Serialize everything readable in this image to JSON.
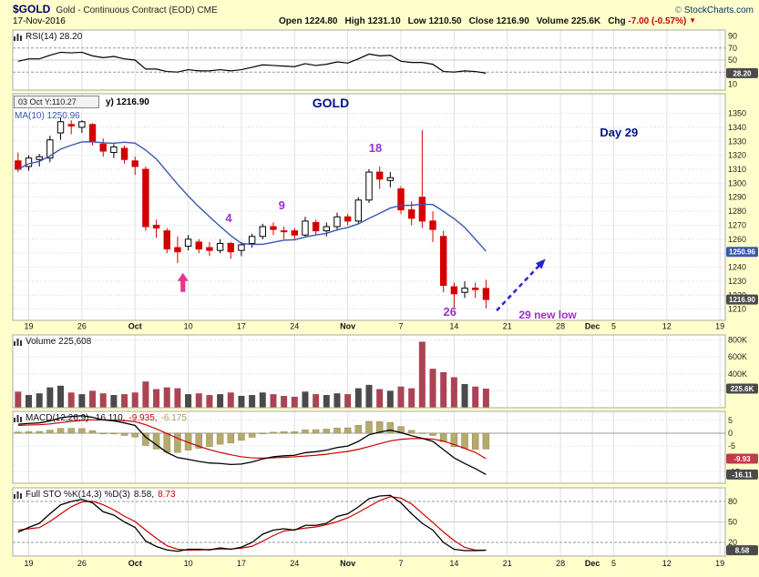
{
  "header": {
    "symbol": "$GOLD",
    "description": "Gold - Continuous Contract (EOD) CME",
    "copyright_prefix": "©",
    "copyright_name": "StockCharts.com",
    "date": "17-Nov-2016",
    "quote": {
      "open_label": "Open",
      "open": "1224.80",
      "high_label": "High",
      "high": "1231.10",
      "low_label": "Low",
      "low": "1210.50",
      "close_label": "Close",
      "close": "1216.90",
      "volume_label": "Volume",
      "volume": "225.6K",
      "chg_label": "Chg",
      "chg": "-7.00 (-0.57%)",
      "chg_dir": "▼"
    }
  },
  "legends": {
    "tooltip": "03 Oct Y:110.27",
    "price_partial": "y) 1216.90",
    "ma": "MA(10) 1250.96",
    "rsi": "RSI(14) 28.20",
    "volume": "Volume 225,608",
    "macd_name": "MACD(12,26,9)",
    "macd_v1": "-16.110,",
    "macd_v2": "-9.935,",
    "macd_v3": "-6.175",
    "sto_name": "Full STO %K(14,3) %D(3)",
    "sto_v1": "8.58,",
    "sto_v2": "8.73"
  },
  "chart_data": {
    "type": "candlestick",
    "title": "$GOLD Gold - Continuous Contract (EOD) CME",
    "slots": 67,
    "x_axis": {
      "grid_slots": [
        1,
        6,
        11,
        16,
        21,
        26,
        31,
        36,
        41,
        46,
        51,
        54,
        56,
        61,
        66
      ],
      "labels": [
        [
          1,
          "19",
          0
        ],
        [
          6,
          "26",
          0
        ],
        [
          11,
          "Oct",
          1
        ],
        [
          16,
          "10",
          0
        ],
        [
          21,
          "17",
          0
        ],
        [
          26,
          "24",
          0
        ],
        [
          31,
          "Nov",
          1
        ],
        [
          36,
          "7",
          0
        ],
        [
          41,
          "14",
          0
        ],
        [
          46,
          "21",
          0
        ],
        [
          51,
          "28",
          0
        ],
        [
          54,
          "Dec",
          1
        ],
        [
          56,
          "5",
          0
        ],
        [
          61,
          "12",
          0
        ],
        [
          66,
          "19",
          0
        ]
      ]
    },
    "panels": {
      "rsi": {
        "range": [
          0,
          100
        ],
        "ticks": [
          90,
          70,
          50,
          10
        ],
        "dashed": [
          70,
          30
        ],
        "solid": [
          50
        ],
        "values": [
          48,
          52,
          52,
          58,
          63,
          62,
          63,
          57,
          54,
          56,
          52,
          50,
          35,
          35,
          31,
          30,
          34,
          32,
          32,
          34,
          32,
          34,
          38,
          42,
          41,
          40,
          39,
          44,
          41,
          43,
          47,
          45,
          52,
          60,
          57,
          58,
          48,
          46,
          46,
          43,
          31,
          30,
          32,
          31,
          28.2
        ],
        "boxes": [
          {
            "text": "28.20",
            "v": 28.2,
            "bg": "#4a4a4a"
          }
        ]
      },
      "price": {
        "range": [
          1202,
          1364
        ],
        "ticks": [
          1350,
          1340,
          1330,
          1320,
          1310,
          1300,
          1290,
          1280,
          1270,
          1260,
          1250,
          1240,
          1230,
          1220,
          1210
        ],
        "ma_period": 10,
        "ma_color": "#3a58b0",
        "candles": [
          [
            "Sep 16",
            1316,
            1322,
            1308,
            1310,
            190
          ],
          [
            "Sep 19",
            1312,
            1320,
            1309,
            1318,
            150
          ],
          [
            "Sep 20",
            1317,
            1321,
            1312,
            1319,
            170
          ],
          [
            "Sep 21",
            1318,
            1334,
            1315,
            1331,
            240
          ],
          [
            "Sep 22",
            1336,
            1347,
            1331,
            1344,
            260
          ],
          [
            "Sep 23",
            1342,
            1345,
            1335,
            1341,
            180
          ],
          [
            "Sep 26",
            1340,
            1345,
            1336,
            1344,
            160
          ],
          [
            "Sep 27",
            1342,
            1343,
            1327,
            1330,
            200
          ],
          [
            "Sep 28",
            1328,
            1332,
            1319,
            1323,
            170
          ],
          [
            "Sep 29",
            1322,
            1328,
            1318,
            1326,
            150
          ],
          [
            "Sep 30",
            1325,
            1327,
            1314,
            1317,
            160
          ],
          [
            "Oct 3",
            1316,
            1319,
            1306,
            1312,
            180
          ],
          [
            "Oct 4",
            1310,
            1312,
            1266,
            1269,
            310
          ],
          [
            "Oct 5",
            1270,
            1274,
            1261,
            1268,
            220
          ],
          [
            "Oct 6",
            1266,
            1268,
            1250,
            1253,
            240
          ],
          [
            "Oct 7",
            1254,
            1262,
            1243,
            1251,
            230
          ],
          [
            "Oct 10",
            1255,
            1263,
            1252,
            1260,
            160
          ],
          [
            "Oct 11",
            1258,
            1260,
            1250,
            1253,
            170
          ],
          [
            "Oct 12",
            1254,
            1258,
            1248,
            1252,
            150
          ],
          [
            "Oct 13",
            1252,
            1260,
            1250,
            1257,
            160
          ],
          [
            "Oct 14",
            1257,
            1258,
            1246,
            1251,
            180
          ],
          [
            "Oct 17",
            1252,
            1258,
            1248,
            1256,
            140
          ],
          [
            "Oct 18",
            1257,
            1264,
            1254,
            1262,
            150
          ],
          [
            "Oct 19",
            1262,
            1271,
            1260,
            1269,
            180
          ],
          [
            "Oct 20",
            1269,
            1272,
            1263,
            1267,
            160
          ],
          [
            "Oct 21",
            1266,
            1269,
            1260,
            1266,
            140
          ],
          [
            "Oct 24",
            1266,
            1268,
            1259,
            1263,
            130
          ],
          [
            "Oct 25",
            1263,
            1276,
            1262,
            1273,
            190
          ],
          [
            "Oct 26",
            1272,
            1274,
            1263,
            1266,
            160
          ],
          [
            "Oct 27",
            1266,
            1272,
            1262,
            1269,
            150
          ],
          [
            "Oct 28",
            1269,
            1279,
            1266,
            1276,
            170
          ],
          [
            "Oct 31",
            1276,
            1278,
            1270,
            1273,
            160
          ],
          [
            "Nov 1",
            1273,
            1290,
            1271,
            1288,
            230
          ],
          [
            "Nov 2",
            1288,
            1310,
            1286,
            1308,
            270
          ],
          [
            "Nov 3",
            1308,
            1312,
            1296,
            1303,
            220
          ],
          [
            "Nov 4",
            1302,
            1308,
            1297,
            1304,
            200
          ],
          [
            "Nov 7",
            1296,
            1298,
            1278,
            1281,
            250
          ],
          [
            "Nov 8",
            1281,
            1287,
            1270,
            1275,
            230
          ],
          [
            "Nov 9",
            1290,
            1338,
            1268,
            1273,
            780
          ],
          [
            "Nov 10",
            1273,
            1280,
            1258,
            1267,
            460
          ],
          [
            "Nov 11",
            1262,
            1266,
            1222,
            1227,
            420
          ],
          [
            "Nov 14",
            1226,
            1229,
            1211,
            1221,
            360
          ],
          [
            "Nov 15",
            1222,
            1230,
            1218,
            1225,
            280
          ],
          [
            "Nov 16",
            1225,
            1229,
            1218,
            1224,
            250
          ],
          [
            "Nov 17",
            1224.8,
            1231.1,
            1210.5,
            1216.9,
            225.608
          ]
        ],
        "boxes": [
          {
            "text": "1250.96",
            "v": 1250.96,
            "bg": "#3a58b0"
          },
          {
            "text": "1216.90",
            "v": 1216.9,
            "bg": "#4a4a4a"
          }
        ]
      },
      "volume": {
        "range": [
          0,
          860
        ],
        "ticks": [
          [
            800,
            "800K"
          ],
          [
            600,
            "600K"
          ],
          [
            400,
            "400K"
          ],
          [
            200,
            "200K"
          ]
        ],
        "boxes": [
          {
            "text": "225.6K",
            "v": 225.6,
            "bg": "#4a4a4a"
          }
        ]
      },
      "macd": {
        "range": [
          -19.5,
          8.5
        ],
        "ticks": [
          5,
          0,
          -5,
          -15
        ],
        "dotted": [
          5,
          -5,
          -15
        ],
        "zero": 0,
        "macd": [
          3.5,
          3.8,
          4.0,
          4.8,
          6.0,
          6.5,
          6.8,
          6.2,
          5.2,
          4.8,
          4.0,
          3.0,
          -1.5,
          -4.5,
          -7.5,
          -9.5,
          -10.2,
          -11.0,
          -11.6,
          -11.8,
          -12.2,
          -12.0,
          -11.2,
          -10.0,
          -9.2,
          -8.8,
          -8.6,
          -7.6,
          -7.2,
          -6.6,
          -5.6,
          -5.0,
          -3.2,
          -0.6,
          0.4,
          1.2,
          0.2,
          -1.0,
          -2.0,
          -3.2,
          -6.4,
          -9.6,
          -11.8,
          -13.8,
          -16.11
        ],
        "signal": [
          3.0,
          3.2,
          3.3,
          3.6,
          4.1,
          4.6,
          5.0,
          5.2,
          5.2,
          5.1,
          4.9,
          4.5,
          3.3,
          1.7,
          -0.1,
          -2.0,
          -3.6,
          -5.1,
          -6.4,
          -7.5,
          -8.4,
          -9.2,
          -9.6,
          -9.7,
          -9.6,
          -9.4,
          -9.2,
          -8.9,
          -8.6,
          -8.2,
          -7.6,
          -7.1,
          -6.3,
          -5.2,
          -4.1,
          -3.0,
          -2.4,
          -2.1,
          -2.1,
          -2.3,
          -3.1,
          -4.4,
          -5.9,
          -7.5,
          -9.935
        ],
        "boxes": [
          {
            "text": "-9.93",
            "v": -9.935,
            "bg": "#c23b4b"
          },
          {
            "text": "-16.11",
            "v": -16.11,
            "bg": "#4a4a4a"
          }
        ]
      },
      "sto": {
        "range": [
          0,
          100
        ],
        "ticks": [
          80,
          50,
          20
        ],
        "dashed": [
          80,
          20
        ],
        "solid": [
          50
        ],
        "k": [
          35,
          42,
          48,
          62,
          75,
          80,
          83,
          78,
          65,
          60,
          50,
          42,
          22,
          14,
          9,
          7,
          10,
          10,
          9,
          12,
          10,
          13,
          20,
          32,
          38,
          40,
          38,
          45,
          45,
          48,
          58,
          62,
          72,
          84,
          88,
          89,
          78,
          62,
          48,
          38,
          20,
          10,
          8,
          8,
          8.58
        ],
        "d": [
          38,
          40,
          41.7,
          50.7,
          61.7,
          72.3,
          79.3,
          80.3,
          75.3,
          67.7,
          58.3,
          50.7,
          38,
          26,
          15,
          10,
          8.7,
          9,
          9.7,
          10.3,
          10.3,
          11.7,
          14.3,
          21.7,
          30,
          36.7,
          38.7,
          41,
          42.7,
          46,
          50.3,
          56,
          64,
          72.7,
          81.3,
          87,
          85,
          76.3,
          62.7,
          49.3,
          35.3,
          22.7,
          12.7,
          8.7,
          8.73
        ],
        "boxes": [
          {
            "text": "8.58",
            "v": 8.58,
            "bg": "#4a4a4a"
          }
        ]
      }
    },
    "annotations": [
      {
        "id": "gold",
        "text": "GOLD",
        "slot": 29.4,
        "price": 1357,
        "color": "#001289",
        "size": 14
      },
      {
        "id": "day-29",
        "text": "Day 29",
        "slot": 56.5,
        "price": 1336,
        "color": "#001289",
        "size": 13
      },
      {
        "id": "count-18",
        "text": "18",
        "slot": 33.6,
        "price": 1325,
        "color": "#9933cc",
        "size": 13
      },
      {
        "id": "count-9",
        "text": "9",
        "slot": 24.8,
        "price": 1284,
        "color": "#9933cc",
        "size": 13
      },
      {
        "id": "count-4",
        "text": "4",
        "slot": 19.8,
        "price": 1275,
        "color": "#9933cc",
        "size": 13
      },
      {
        "id": "count-26",
        "text": "26",
        "slot": 40.6,
        "price": 1208,
        "color": "#9933cc",
        "size": 13
      },
      {
        "id": "new-low",
        "text": "29 new low",
        "slot": 49.8,
        "price": 1206,
        "color": "#9933cc",
        "size": 12
      }
    ],
    "arrows": {
      "pink": {
        "slot": 15.5,
        "price_tip": 1236,
        "color": "#e8368f"
      },
      "blue": {
        "slot1": 45.0,
        "price1": 1209,
        "slot2": 49.6,
        "price2": 1246,
        "color": "#2323dd"
      }
    },
    "colors": {
      "up": "#000000",
      "down": "#d40000",
      "vol_up": "#4a4a4a",
      "vol_down": "#aa4455",
      "hist": "#b5aa6e",
      "hist_stroke": "#968b52",
      "macd_line": "#000000",
      "signal_line": "#cc0000",
      "k_line": "#000000",
      "d_line": "#cc0000",
      "rsi_line": "#000000",
      "grid": "#e0e0e0",
      "grid_dash": "#999999",
      "grid_mid": "#cccccc",
      "border": "#a8a8a8",
      "axis_text": "#222222"
    }
  }
}
